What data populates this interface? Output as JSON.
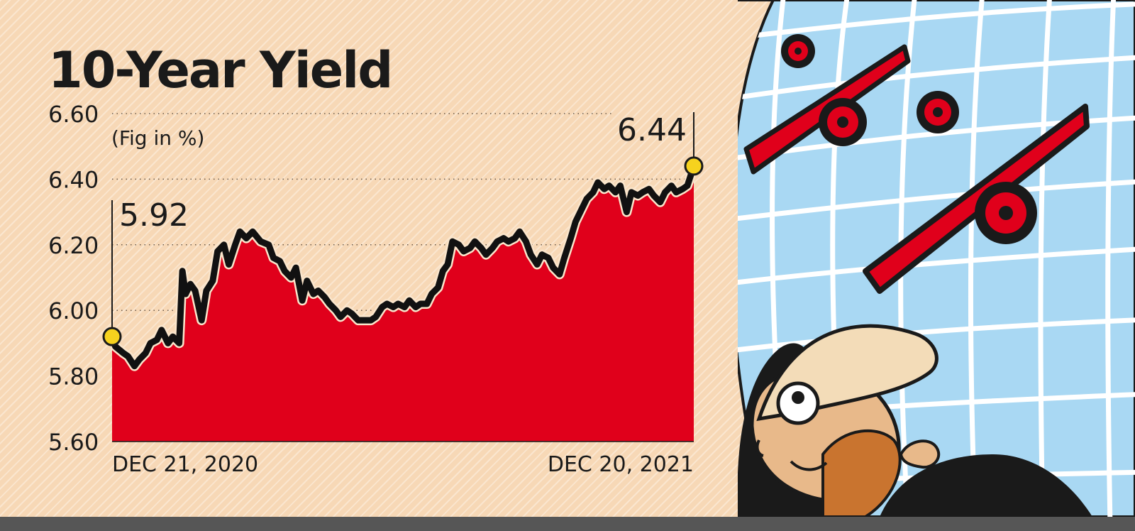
{
  "chart_data": {
    "type": "area",
    "title": "10-Year Yield",
    "unit_note": "(Fig in %)",
    "ylim": [
      5.6,
      6.6
    ],
    "y_ticks": [
      "6.60",
      "6.40",
      "6.20",
      "6.00",
      "5.80",
      "5.60"
    ],
    "x_tick_labels": [
      "DEC 21, 2020",
      "DEC 20, 2021"
    ],
    "x_range": [
      "2020-12-21",
      "2021-12-20"
    ],
    "grid": "dotted horizontal",
    "annotations": [
      {
        "label": "5.92",
        "x": "2020-12-21",
        "y": 5.92
      },
      {
        "label": "6.44",
        "x": "2021-12-20",
        "y": 6.44
      }
    ],
    "series": [
      {
        "color": "#e0001b",
        "line_color": "#111111",
        "points": [
          [
            "2020-12-21",
            5.92
          ],
          [
            "2020-12-23",
            5.89
          ],
          [
            "2020-12-28",
            5.87
          ],
          [
            "2020-12-31",
            5.86
          ],
          [
            "2021-01-04",
            5.83
          ],
          [
            "2021-01-07",
            5.85
          ],
          [
            "2021-01-11",
            5.87
          ],
          [
            "2021-01-14",
            5.9
          ],
          [
            "2021-01-18",
            5.91
          ],
          [
            "2021-01-21",
            5.94
          ],
          [
            "2021-01-25",
            5.9
          ],
          [
            "2021-01-28",
            5.92
          ],
          [
            "2021-02-01",
            5.9
          ],
          [
            "2021-02-03",
            6.12
          ],
          [
            "2021-02-05",
            6.05
          ],
          [
            "2021-02-08",
            6.08
          ],
          [
            "2021-02-11",
            6.06
          ],
          [
            "2021-02-15",
            5.97
          ],
          [
            "2021-02-18",
            6.06
          ],
          [
            "2021-02-22",
            6.09
          ],
          [
            "2021-02-25",
            6.18
          ],
          [
            "2021-03-01",
            6.2
          ],
          [
            "2021-03-04",
            6.14
          ],
          [
            "2021-03-08",
            6.2
          ],
          [
            "2021-03-11",
            6.24
          ],
          [
            "2021-03-15",
            6.22
          ],
          [
            "2021-03-19",
            6.24
          ],
          [
            "2021-03-24",
            6.21
          ],
          [
            "2021-03-29",
            6.2
          ],
          [
            "2021-04-01",
            6.16
          ],
          [
            "2021-04-05",
            6.15
          ],
          [
            "2021-04-08",
            6.12
          ],
          [
            "2021-04-12",
            6.1
          ],
          [
            "2021-04-15",
            6.13
          ],
          [
            "2021-04-19",
            6.03
          ],
          [
            "2021-04-22",
            6.09
          ],
          [
            "2021-04-26",
            6.05
          ],
          [
            "2021-04-29",
            6.06
          ],
          [
            "2021-05-03",
            6.04
          ],
          [
            "2021-05-06",
            6.02
          ],
          [
            "2021-05-10",
            6.0
          ],
          [
            "2021-05-13",
            5.98
          ],
          [
            "2021-05-17",
            6.0
          ],
          [
            "2021-05-20",
            5.99
          ],
          [
            "2021-05-24",
            5.97
          ],
          [
            "2021-05-28",
            5.97
          ],
          [
            "2021-06-01",
            5.97
          ],
          [
            "2021-06-04",
            5.98
          ],
          [
            "2021-06-08",
            6.01
          ],
          [
            "2021-06-11",
            6.02
          ],
          [
            "2021-06-15",
            6.01
          ],
          [
            "2021-06-18",
            6.02
          ],
          [
            "2021-06-22",
            6.01
          ],
          [
            "2021-06-25",
            6.03
          ],
          [
            "2021-06-29",
            6.01
          ],
          [
            "2021-07-02",
            6.02
          ],
          [
            "2021-07-06",
            6.02
          ],
          [
            "2021-07-09",
            6.05
          ],
          [
            "2021-07-13",
            6.07
          ],
          [
            "2021-07-16",
            6.12
          ],
          [
            "2021-07-19",
            6.14
          ],
          [
            "2021-07-22",
            6.21
          ],
          [
            "2021-07-26",
            6.2
          ],
          [
            "2021-07-29",
            6.18
          ],
          [
            "2021-08-02",
            6.19
          ],
          [
            "2021-08-05",
            6.21
          ],
          [
            "2021-08-09",
            6.19
          ],
          [
            "2021-08-12",
            6.17
          ],
          [
            "2021-08-16",
            6.19
          ],
          [
            "2021-08-19",
            6.21
          ],
          [
            "2021-08-23",
            6.22
          ],
          [
            "2021-08-26",
            6.21
          ],
          [
            "2021-08-30",
            6.22
          ],
          [
            "2021-09-02",
            6.24
          ],
          [
            "2021-09-06",
            6.21
          ],
          [
            "2021-09-09",
            6.17
          ],
          [
            "2021-09-13",
            6.14
          ],
          [
            "2021-09-16",
            6.17
          ],
          [
            "2021-09-20",
            6.16
          ],
          [
            "2021-09-23",
            6.13
          ],
          [
            "2021-09-27",
            6.11
          ],
          [
            "2021-09-30",
            6.16
          ],
          [
            "2021-10-04",
            6.22
          ],
          [
            "2021-10-07",
            6.27
          ],
          [
            "2021-10-11",
            6.31
          ],
          [
            "2021-10-14",
            6.34
          ],
          [
            "2021-10-18",
            6.36
          ],
          [
            "2021-10-21",
            6.39
          ],
          [
            "2021-10-25",
            6.37
          ],
          [
            "2021-10-28",
            6.38
          ],
          [
            "2021-11-01",
            6.36
          ],
          [
            "2021-11-04",
            6.38
          ],
          [
            "2021-11-08",
            6.3
          ],
          [
            "2021-11-11",
            6.36
          ],
          [
            "2021-11-15",
            6.35
          ],
          [
            "2021-11-18",
            6.36
          ],
          [
            "2021-11-22",
            6.37
          ],
          [
            "2021-11-25",
            6.35
          ],
          [
            "2021-11-29",
            6.33
          ],
          [
            "2021-12-02",
            6.36
          ],
          [
            "2021-12-06",
            6.38
          ],
          [
            "2021-12-09",
            6.36
          ],
          [
            "2021-12-13",
            6.37
          ],
          [
            "2021-12-16",
            6.38
          ],
          [
            "2021-12-20",
            6.44
          ]
        ]
      }
    ]
  }
}
